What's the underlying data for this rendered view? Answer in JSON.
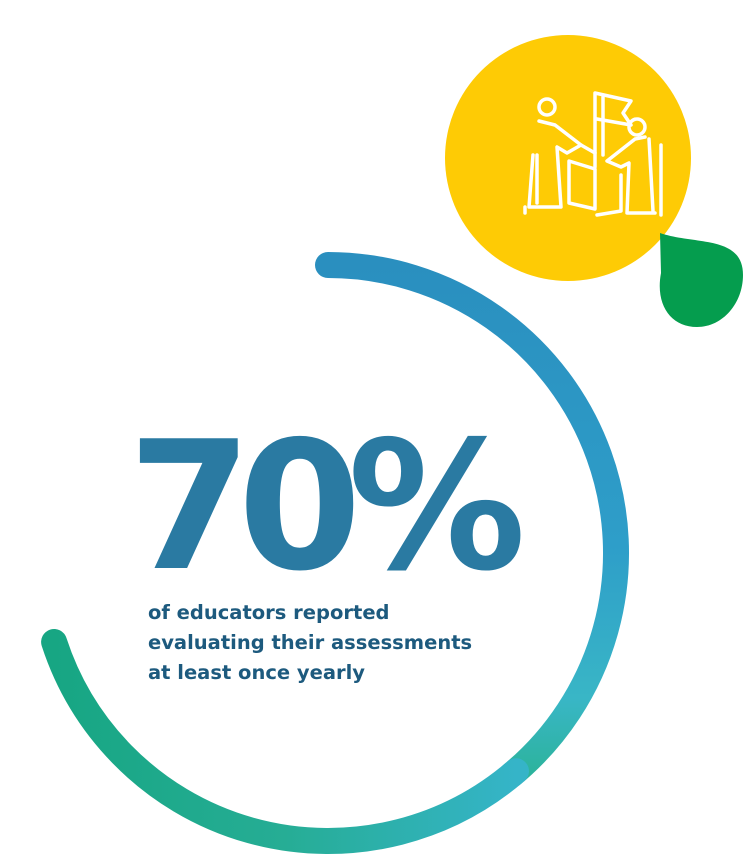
{
  "stat": {
    "value": "70%",
    "fraction": 0.7,
    "caption_lines": [
      "of educators reported",
      "evaluating their assessments",
      "at least once yearly"
    ]
  },
  "colors": {
    "ring_start": "#2d93c0",
    "ring_mid": "#37b2c8",
    "ring_end": "#18a97f",
    "stat_text": "#2a7aa2",
    "caption_text": "#1d5a7e",
    "badge_circle": "#fecb05",
    "badge_drop": "#059d4e",
    "badge_icon": "#ffffff"
  },
  "badge": {
    "icon": "teamwork-flag-icon"
  }
}
